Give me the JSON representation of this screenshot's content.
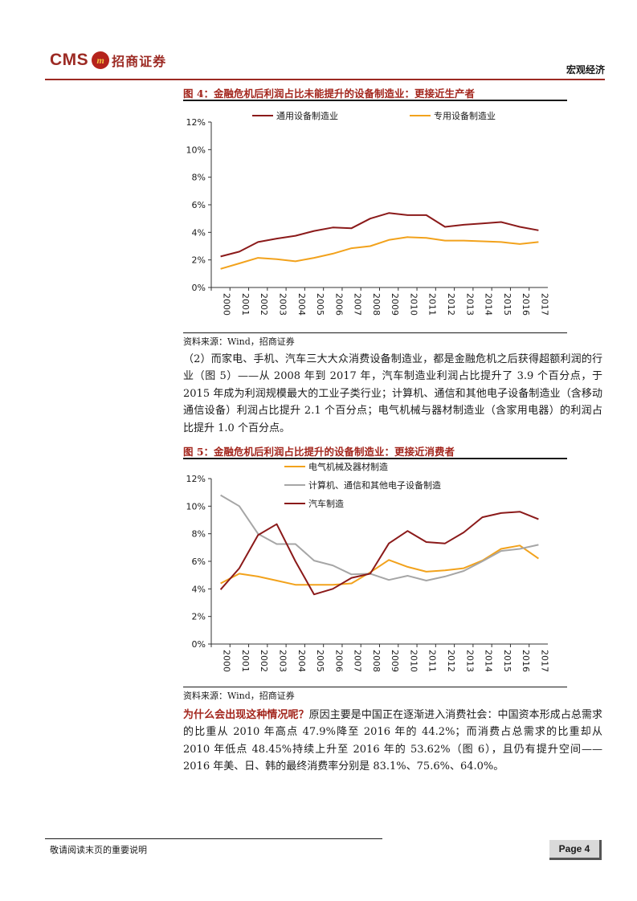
{
  "header": {
    "logo_text": "CMS",
    "logo_seal": "m",
    "logo_cn": "招商证券",
    "section": "宏观经济"
  },
  "figure4": {
    "title": "图 4：金融危机后利润占比未能提升的设备制造业：更接近生产者",
    "source": "资料来源：Wind，招商证券",
    "chart_data": {
      "type": "line",
      "x": [
        "2000",
        "2001",
        "2002",
        "2003",
        "2004",
        "2005",
        "2006",
        "2007",
        "2008",
        "2009",
        "2010",
        "2011",
        "2012",
        "2013",
        "2014",
        "2015",
        "2016",
        "2017"
      ],
      "ylim": [
        0,
        12
      ],
      "yticks": [
        "0%",
        "2%",
        "4%",
        "6%",
        "8%",
        "10%",
        "12%"
      ],
      "legend": "top",
      "series": [
        {
          "name": "通用设备制造业",
          "color": "#8b1a1a",
          "values": [
            2.25,
            2.6,
            3.3,
            3.55,
            3.75,
            4.1,
            4.35,
            4.3,
            5.0,
            5.4,
            5.25,
            5.25,
            4.4,
            4.55,
            4.65,
            4.75,
            4.4,
            4.15
          ]
        },
        {
          "name": "专用设备制造业",
          "color": "#f2a21c",
          "values": [
            1.35,
            1.75,
            2.15,
            2.05,
            1.9,
            2.15,
            2.45,
            2.85,
            3.0,
            3.45,
            3.65,
            3.6,
            3.4,
            3.4,
            3.35,
            3.3,
            3.15,
            3.3
          ]
        }
      ]
    }
  },
  "paragraph1": "（2）而家电、手机、汽车三大大众消费设备制造业，都是金融危机之后获得超额利润的行业（图 5）——从 2008 年到 2017 年，汽车制造业利润占比提升了 3.9 个百分点，于 2015 年成为利润规模最大的工业子类行业；计算机、通信和其他电子设备制造业（含移动通信设备）利润占比提升 2.1 个百分点；电气机械与器材制造业（含家用电器）的利润占比提升 1.0 个百分点。",
  "figure5": {
    "title": "图 5：金融危机后利润占比提升的设备制造业：更接近消费者",
    "source": "资料来源：Wind，招商证券",
    "chart_data": {
      "type": "line",
      "x": [
        "2000",
        "2001",
        "2002",
        "2003",
        "2004",
        "2005",
        "2006",
        "2007",
        "2008",
        "2009",
        "2010",
        "2011",
        "2012",
        "2013",
        "2014",
        "2015",
        "2016",
        "2017"
      ],
      "ylim": [
        0,
        12
      ],
      "yticks": [
        "0%",
        "2%",
        "4%",
        "6%",
        "8%",
        "10%",
        "12%"
      ],
      "legend": "top",
      "series": [
        {
          "name": "电气机械及器材制造",
          "color": "#f2a21c",
          "values": [
            4.4,
            5.1,
            4.9,
            4.6,
            4.3,
            4.3,
            4.3,
            4.4,
            5.2,
            6.1,
            5.6,
            5.25,
            5.35,
            5.5,
            6.05,
            6.9,
            7.15,
            6.2
          ]
        },
        {
          "name": "计算机、通信和其他电子设备制造",
          "color": "#a6a6a6",
          "values": [
            10.8,
            10.0,
            8.0,
            7.25,
            7.25,
            6.05,
            5.7,
            5.05,
            5.1,
            4.65,
            4.95,
            4.6,
            4.9,
            5.3,
            6.0,
            6.75,
            6.9,
            7.2
          ]
        },
        {
          "name": "汽车制造",
          "color": "#8b1a1a",
          "values": [
            3.95,
            5.5,
            7.9,
            8.7,
            6.0,
            3.6,
            4.0,
            4.8,
            5.1,
            7.3,
            8.2,
            7.4,
            7.3,
            8.1,
            9.2,
            9.5,
            9.6,
            9.05
          ]
        }
      ]
    }
  },
  "paragraph2": {
    "lead": "为什么会出现这种情况呢？",
    "body": "原因主要是中国正在逐渐进入消费社会：中国资本形成占总需求的比重从 2010 年高点 47.9%降至 2016 年的 44.2%；而消费占总需求的比重却从 2010 年低点 48.45%持续上升至 2016 年的 53.62%（图 6），且仍有提升空间——2016 年美、日、韩的最终消费率分别是 83.1%、75.6%、64.0%。"
  },
  "footer": {
    "note": "敬请阅读末页的重要说明",
    "page": "Page 4"
  }
}
